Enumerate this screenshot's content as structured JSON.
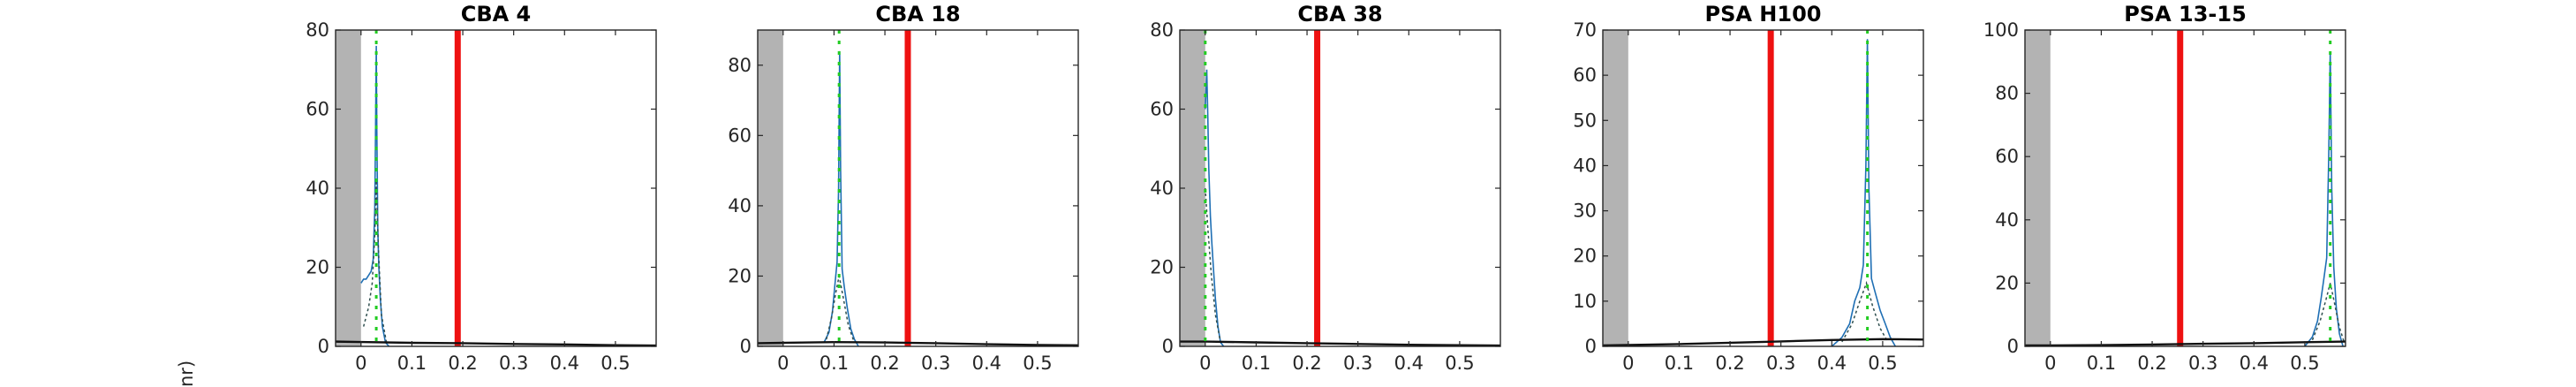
{
  "figure": {
    "ylabel_fragment": "nr)"
  },
  "chart_data": [
    {
      "type": "line",
      "title": "CBA 4",
      "xlim": [
        -0.05,
        0.58
      ],
      "ylim": [
        0,
        80
      ],
      "xticks": [
        0,
        0.1,
        0.2,
        0.3,
        0.4,
        0.5
      ],
      "xtick_labels": [
        "0",
        "0.1",
        "0.2",
        "0.3",
        "0.4",
        "0.5"
      ],
      "yticks": [
        0,
        20,
        40,
        60,
        80
      ],
      "ytick_labels": [
        "0",
        "20",
        "40",
        "60",
        "80"
      ],
      "shaded_region": [
        -0.05,
        0
      ],
      "red_line_x": 0.19,
      "green_line_x": 0.03,
      "series": [
        {
          "style": "blue-histogram",
          "x": [
            0.0,
            0.005,
            0.01,
            0.015,
            0.02,
            0.024,
            0.027,
            0.029,
            0.03,
            0.031,
            0.033,
            0.035,
            0.038,
            0.042,
            0.048,
            0.055
          ],
          "y": [
            16,
            17,
            17,
            18,
            19,
            22,
            35,
            60,
            76,
            55,
            30,
            20,
            12,
            5,
            1,
            0
          ]
        },
        {
          "style": "dark-dashed",
          "x": [
            0.005,
            0.015,
            0.022,
            0.027,
            0.03,
            0.034,
            0.04,
            0.05
          ],
          "y": [
            5,
            10,
            16,
            28,
            42,
            25,
            8,
            1
          ]
        },
        {
          "style": "black-baseline",
          "x": [
            -0.05,
            0.0,
            0.1,
            0.2,
            0.3,
            0.4,
            0.5,
            0.58
          ],
          "y": [
            1.2,
            1.1,
            0.9,
            0.8,
            0.6,
            0.5,
            0.3,
            0.2
          ]
        }
      ]
    },
    {
      "type": "line",
      "title": "CBA 18",
      "xlim": [
        -0.05,
        0.58
      ],
      "ylim": [
        0,
        90
      ],
      "xticks": [
        0,
        0.1,
        0.2,
        0.3,
        0.4,
        0.5
      ],
      "xtick_labels": [
        "0",
        "0.1",
        "0.2",
        "0.3",
        "0.4",
        "0.5"
      ],
      "yticks": [
        0,
        20,
        40,
        60,
        80
      ],
      "ytick_labels": [
        "0",
        "20",
        "40",
        "60",
        "80"
      ],
      "shaded_region": [
        -0.05,
        0
      ],
      "red_line_x": 0.245,
      "green_line_x": 0.11,
      "series": [
        {
          "style": "blue-histogram",
          "x": [
            0.08,
            0.09,
            0.097,
            0.102,
            0.106,
            0.109,
            0.111,
            0.113,
            0.116,
            0.12,
            0.126,
            0.133,
            0.14,
            0.148
          ],
          "y": [
            1,
            4,
            10,
            18,
            24,
            45,
            84,
            50,
            22,
            17,
            11,
            5,
            2,
            0
          ]
        },
        {
          "style": "dark-dashed",
          "x": [
            0.085,
            0.095,
            0.103,
            0.11,
            0.118,
            0.128,
            0.14
          ],
          "y": [
            2,
            8,
            15,
            20,
            14,
            6,
            1
          ]
        },
        {
          "style": "black-baseline",
          "x": [
            -0.05,
            0.0,
            0.1,
            0.2,
            0.3,
            0.4,
            0.5,
            0.58
          ],
          "y": [
            0.9,
            1.0,
            1.2,
            1.1,
            0.9,
            0.6,
            0.4,
            0.3
          ]
        }
      ]
    },
    {
      "type": "line",
      "title": "CBA 38",
      "xlim": [
        -0.05,
        0.58
      ],
      "ylim": [
        0,
        80
      ],
      "xticks": [
        0,
        0.1,
        0.2,
        0.3,
        0.4,
        0.5
      ],
      "xtick_labels": [
        "0",
        "0.1",
        "0.2",
        "0.3",
        "0.4",
        "0.5"
      ],
      "yticks": [
        0,
        20,
        40,
        60,
        80
      ],
      "ytick_labels": [
        "0",
        "20",
        "40",
        "60",
        "80"
      ],
      "shaded_region": [
        -0.05,
        0
      ],
      "red_line_x": 0.22,
      "green_line_x": 0.0,
      "series": [
        {
          "style": "blue-histogram",
          "x": [
            0.0,
            0.003,
            0.005,
            0.007,
            0.01,
            0.013,
            0.016,
            0.02,
            0.025,
            0.03,
            0.036
          ],
          "y": [
            60,
            70,
            58,
            45,
            33,
            26,
            20,
            12,
            5,
            1,
            0
          ]
        },
        {
          "style": "dark-dashed",
          "x": [
            0.0,
            0.005,
            0.012,
            0.02,
            0.03
          ],
          "y": [
            40,
            30,
            18,
            8,
            1
          ]
        },
        {
          "style": "black-baseline",
          "x": [
            -0.05,
            0.0,
            0.1,
            0.2,
            0.3,
            0.4,
            0.5,
            0.58
          ],
          "y": [
            1.2,
            1.2,
            1.0,
            0.8,
            0.6,
            0.4,
            0.3,
            0.2
          ]
        }
      ]
    },
    {
      "type": "line",
      "title": "PSA H100",
      "xlim": [
        -0.05,
        0.58
      ],
      "ylim": [
        0,
        70
      ],
      "xticks": [
        0,
        0.1,
        0.2,
        0.3,
        0.4,
        0.5
      ],
      "xtick_labels": [
        "0",
        "0.1",
        "0.2",
        "0.3",
        "0.4",
        "0.5"
      ],
      "yticks": [
        0,
        10,
        20,
        30,
        40,
        50,
        60,
        70
      ],
      "ytick_labels": [
        "0",
        "10",
        "20",
        "30",
        "40",
        "50",
        "60",
        "70"
      ],
      "shaded_region": [
        -0.05,
        0
      ],
      "red_line_x": 0.28,
      "green_line_x": 0.47,
      "series": [
        {
          "style": "blue-histogram",
          "x": [
            0.4,
            0.42,
            0.435,
            0.445,
            0.455,
            0.462,
            0.467,
            0.47,
            0.473,
            0.478,
            0.485,
            0.495,
            0.505,
            0.515,
            0.525
          ],
          "y": [
            0,
            2,
            5,
            10,
            13,
            18,
            40,
            68,
            35,
            15,
            12,
            8,
            5,
            2,
            0
          ]
        },
        {
          "style": "dark-dashed",
          "x": [
            0.42,
            0.44,
            0.455,
            0.468,
            0.48,
            0.495,
            0.51
          ],
          "y": [
            1,
            5,
            10,
            14,
            9,
            4,
            1
          ]
        },
        {
          "style": "black-baseline",
          "x": [
            -0.05,
            0.0,
            0.1,
            0.2,
            0.3,
            0.4,
            0.5,
            0.58
          ],
          "y": [
            0.2,
            0.3,
            0.5,
            0.8,
            1.1,
            1.4,
            1.6,
            1.5
          ]
        }
      ]
    },
    {
      "type": "line",
      "title": "PSA 13-15",
      "xlim": [
        -0.05,
        0.58
      ],
      "ylim": [
        0,
        100
      ],
      "xticks": [
        0,
        0.1,
        0.2,
        0.3,
        0.4,
        0.5
      ],
      "xtick_labels": [
        "0",
        "0.1",
        "0.2",
        "0.3",
        "0.4",
        "0.5"
      ],
      "yticks": [
        0,
        20,
        40,
        60,
        80,
        100
      ],
      "ytick_labels": [
        "0",
        "20",
        "40",
        "60",
        "80",
        "100"
      ],
      "shaded_region": [
        -0.05,
        0
      ],
      "red_line_x": 0.255,
      "green_line_x": 0.55,
      "series": [
        {
          "style": "blue-histogram",
          "x": [
            0.5,
            0.515,
            0.525,
            0.532,
            0.538,
            0.543,
            0.547,
            0.55,
            0.553,
            0.557,
            0.562,
            0.568,
            0.575
          ],
          "y": [
            0,
            3,
            8,
            15,
            22,
            28,
            60,
            93,
            50,
            25,
            12,
            4,
            0
          ]
        },
        {
          "style": "dark-dashed",
          "x": [
            0.515,
            0.53,
            0.542,
            0.55,
            0.558,
            0.568,
            0.578
          ],
          "y": [
            2,
            8,
            15,
            20,
            14,
            6,
            1
          ]
        },
        {
          "style": "black-baseline",
          "x": [
            -0.05,
            0.0,
            0.1,
            0.2,
            0.3,
            0.4,
            0.5,
            0.58
          ],
          "y": [
            0.3,
            0.3,
            0.4,
            0.6,
            0.8,
            1.0,
            1.3,
            1.5
          ]
        }
      ]
    }
  ]
}
